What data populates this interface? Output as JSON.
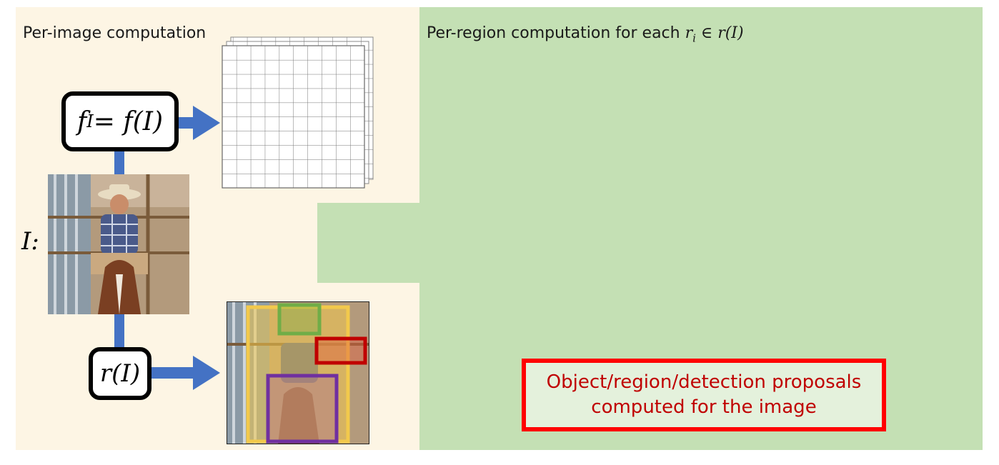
{
  "left_panel": {
    "title": "Per-image computation",
    "feature_function": "f_I = f(I)",
    "feature_function_lhs": "f",
    "feature_function_sub": "I",
    "feature_function_rhs": " = f(I)",
    "proposal_function": "r(I)",
    "input_label": "I:"
  },
  "right_panel": {
    "title_prefix": "Per-region computation for each ",
    "title_math": "r_i ∈ r(I)",
    "title_math_r": "r",
    "title_math_sub": "i",
    "title_math_rest": " ∈ r(I)"
  },
  "proposals_note": {
    "line1": "Object/region/detection proposals",
    "line2": "computed for the image"
  },
  "colors": {
    "left_bg": "#fdf5e4",
    "right_bg": "#c4e0b4",
    "arrow": "#4472c4",
    "proposal_yellow": "#f2c94c",
    "proposal_green": "#70ad47",
    "proposal_red": "#c00000",
    "proposal_purple": "#7030a0",
    "note_border": "#ff0000",
    "note_text": "#c00000"
  },
  "icons": {
    "input_image": "photo-cowboy-on-horse",
    "feature_map": "stacked-grid-feature-map"
  }
}
